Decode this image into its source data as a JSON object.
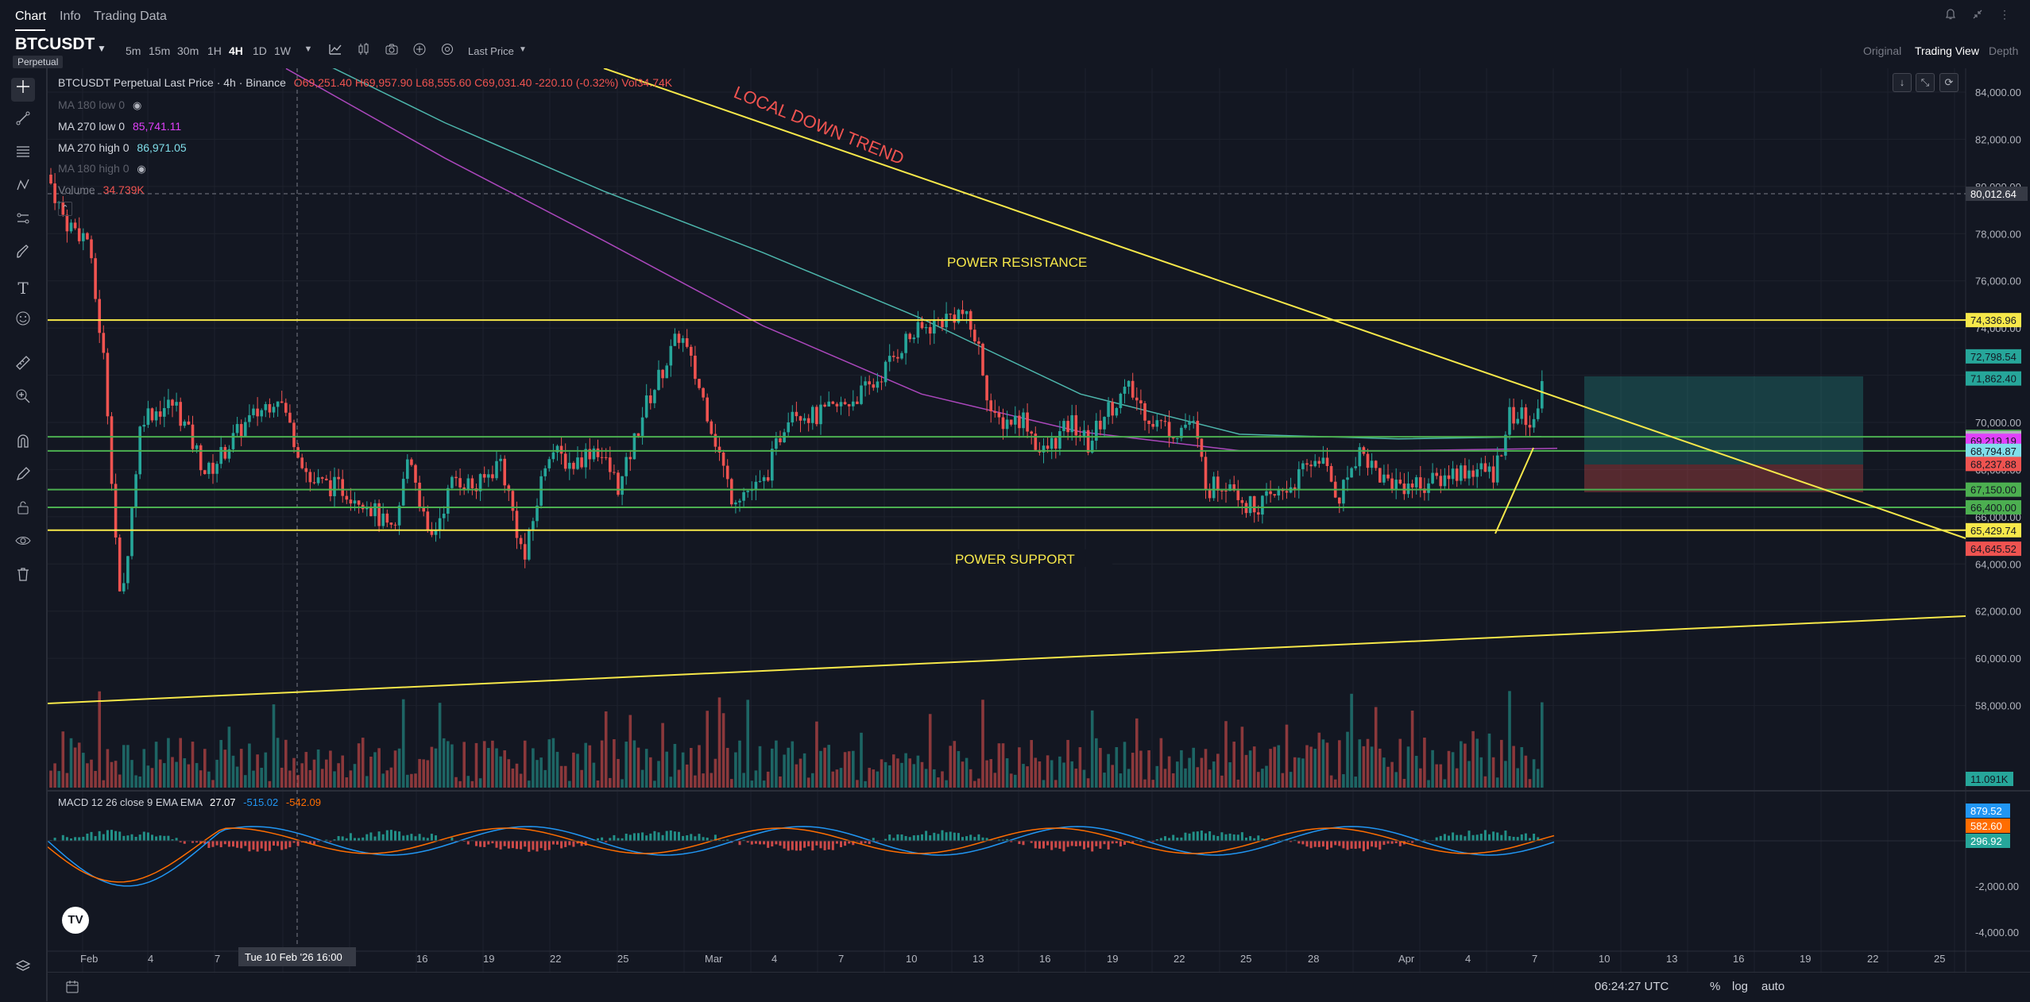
{
  "nav": {
    "tabs": [
      "Chart",
      "Info",
      "Trading Data"
    ]
  },
  "symbol": {
    "name": "BTCUSDT",
    "type": "Perpetual"
  },
  "timeframes": [
    "5m",
    "15m",
    "30m",
    "1H",
    "4H",
    "1D",
    "1W"
  ],
  "active_timeframe": "4H",
  "price_type": "Last Price",
  "views": [
    "Original",
    "Trading View",
    "Depth"
  ],
  "active_view": "Trading View",
  "legend": {
    "title": "BTCUSDT Perpetual Last Price · 4h · Binance",
    "ohlc": "O69,251.40 H69,957.90 L68,555.60 C69,031.40 -220.10 (-0.32%) Vol34.74K",
    "ma180_low": {
      "label": "MA 180 low 0",
      "value": ""
    },
    "ma270_low": {
      "label": "MA 270 low 0",
      "value": "85,741.11"
    },
    "ma270_high": {
      "label": "MA 270 high 0",
      "value": "86,971.05"
    },
    "ma180_high": {
      "label": "MA 180 high 0",
      "value": ""
    },
    "volume": {
      "label": "Volume",
      "value": "34.739K"
    },
    "macd": {
      "label": "MACD 12 26 close 9 EMA EMA",
      "v1": "27.07",
      "v2": "-515.02",
      "v3": "-542.09"
    }
  },
  "annotations": {
    "downtrend": "LOCAL DOWN TREND",
    "resistance": "POWER RESISTANCE",
    "support": "POWER SUPPORT"
  },
  "price_axis": [
    "84,000.00",
    "82,000.00",
    "80,000.00",
    "78,000.00",
    "76,000.00",
    "74,000.00",
    "72,000.00",
    "70,000.00",
    "68,000.00",
    "66,000.00",
    "64,000.00",
    "62,000.00",
    "60,000.00",
    "58,000.00"
  ],
  "crosshair_price": "80,012.64",
  "price_labels": [
    {
      "text": "74,336.96",
      "color": "#f7e84a"
    },
    {
      "text": "72,798.54",
      "color": "#26a69a"
    },
    {
      "text": "71,862.40",
      "color": "#26a69a"
    },
    {
      "text": "69,388.34",
      "color": "#4caf50"
    },
    {
      "text": "69,330.54",
      "color": "#b2b5be"
    },
    {
      "text": "69,219.19",
      "color": "#e040fb"
    },
    {
      "text": "68,794.87",
      "color": "#80deea"
    },
    {
      "text": "68,237.88",
      "color": "#ef5350"
    },
    {
      "text": "67,150.00",
      "color": "#4caf50"
    },
    {
      "text": "66,400.00",
      "color": "#4caf50"
    },
    {
      "text": "65,429.74",
      "color": "#f7e84a"
    },
    {
      "text": "64,645.52",
      "color": "#ef5350"
    }
  ],
  "volume_label": "11.091K",
  "macd_axis": [
    "-2,000.00",
    "-4,000.00"
  ],
  "macd_labels": [
    {
      "text": "879.52",
      "color": "#2196f3"
    },
    {
      "text": "582.60",
      "color": "#ff6d00"
    },
    {
      "text": "296.92",
      "color": "#26a69a"
    }
  ],
  "time_axis": [
    "Feb",
    "4",
    "7",
    "16",
    "19",
    "22",
    "25",
    "Mar",
    "4",
    "7",
    "10",
    "13",
    "16",
    "19",
    "22",
    "25",
    "28",
    "Apr",
    "4",
    "7",
    "10",
    "13",
    "16",
    "19",
    "22",
    "25"
  ],
  "crosshair_time": "Tue 10 Feb '26  16:00",
  "clock": "06:24:27 UTC",
  "scale_opts": [
    "%",
    "log",
    "auto"
  ],
  "colors": {
    "up": "#26a69a",
    "down": "#ef5350",
    "trend": "#f7e84a",
    "level": "#4caf50",
    "ma_cyan": "#4db6ac",
    "ma_purple": "#ab47bc"
  }
}
